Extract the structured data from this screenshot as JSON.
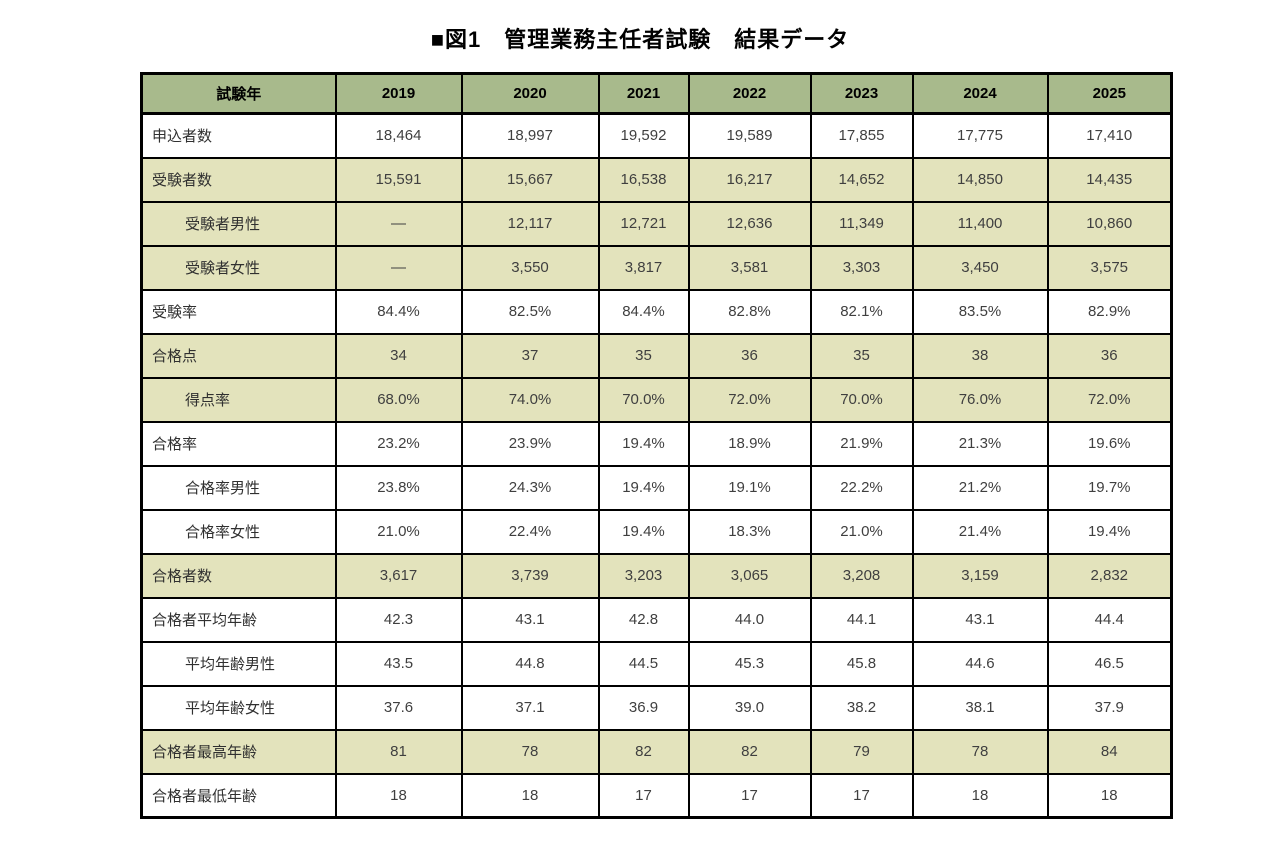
{
  "title": "■図1　管理業務主任者試験　結果データ",
  "colors": {
    "header_bg": "#A8BA8C",
    "shaded_bg": "#E3E3BC",
    "border": "#000000",
    "label_text": "#303030",
    "value_text": "#3F3F3F",
    "title_text": "#000000"
  },
  "chart_data": {
    "type": "table",
    "title": "■図1　管理業務主任者試験　結果データ",
    "columns": [
      "試験年",
      "2019",
      "2020",
      "2021",
      "2022",
      "2023",
      "2024",
      "2025"
    ],
    "rows": [
      {
        "label": "申込者数",
        "indent": false,
        "shaded": false,
        "values": [
          "18,464",
          "18,997",
          "19,592",
          "19,589",
          "17,855",
          "17,775",
          "17,410"
        ]
      },
      {
        "label": "受験者数",
        "indent": false,
        "shaded": true,
        "values": [
          "15,591",
          "15,667",
          "16,538",
          "16,217",
          "14,652",
          "14,850",
          "14,435"
        ]
      },
      {
        "label": "受験者男性",
        "indent": true,
        "shaded": true,
        "values": [
          "―",
          "12,117",
          "12,721",
          "12,636",
          "11,349",
          "11,400",
          "10,860"
        ]
      },
      {
        "label": "受験者女性",
        "indent": true,
        "shaded": true,
        "values": [
          "―",
          "3,550",
          "3,817",
          "3,581",
          "3,303",
          "3,450",
          "3,575"
        ]
      },
      {
        "label": "受験率",
        "indent": false,
        "shaded": false,
        "values": [
          "84.4%",
          "82.5%",
          "84.4%",
          "82.8%",
          "82.1%",
          "83.5%",
          "82.9%"
        ]
      },
      {
        "label": "合格点",
        "indent": false,
        "shaded": true,
        "values": [
          "34",
          "37",
          "35",
          "36",
          "35",
          "38",
          "36"
        ]
      },
      {
        "label": "得点率",
        "indent": true,
        "shaded": true,
        "values": [
          "68.0%",
          "74.0%",
          "70.0%",
          "72.0%",
          "70.0%",
          "76.0%",
          "72.0%"
        ]
      },
      {
        "label": "合格率",
        "indent": false,
        "shaded": false,
        "values": [
          "23.2%",
          "23.9%",
          "19.4%",
          "18.9%",
          "21.9%",
          "21.3%",
          "19.6%"
        ]
      },
      {
        "label": "合格率男性",
        "indent": true,
        "shaded": false,
        "values": [
          "23.8%",
          "24.3%",
          "19.4%",
          "19.1%",
          "22.2%",
          "21.2%",
          "19.7%"
        ]
      },
      {
        "label": "合格率女性",
        "indent": true,
        "shaded": false,
        "values": [
          "21.0%",
          "22.4%",
          "19.4%",
          "18.3%",
          "21.0%",
          "21.4%",
          "19.4%"
        ]
      },
      {
        "label": "合格者数",
        "indent": false,
        "shaded": true,
        "values": [
          "3,617",
          "3,739",
          "3,203",
          "3,065",
          "3,208",
          "3,159",
          "2,832"
        ]
      },
      {
        "label": "合格者平均年齢",
        "indent": false,
        "shaded": false,
        "values": [
          "42.3",
          "43.1",
          "42.8",
          "44.0",
          "44.1",
          "43.1",
          "44.4"
        ]
      },
      {
        "label": "平均年齢男性",
        "indent": true,
        "shaded": false,
        "values": [
          "43.5",
          "44.8",
          "44.5",
          "45.3",
          "45.8",
          "44.6",
          "46.5"
        ]
      },
      {
        "label": "平均年齢女性",
        "indent": true,
        "shaded": false,
        "values": [
          "37.6",
          "37.1",
          "36.9",
          "39.0",
          "38.2",
          "38.1",
          "37.9"
        ]
      },
      {
        "label": "合格者最高年齢",
        "indent": false,
        "shaded": true,
        "values": [
          "81",
          "78",
          "82",
          "82",
          "79",
          "78",
          "84"
        ]
      },
      {
        "label": "合格者最低年齢",
        "indent": false,
        "shaded": false,
        "values": [
          "18",
          "18",
          "17",
          "17",
          "17",
          "18",
          "18"
        ]
      }
    ]
  }
}
